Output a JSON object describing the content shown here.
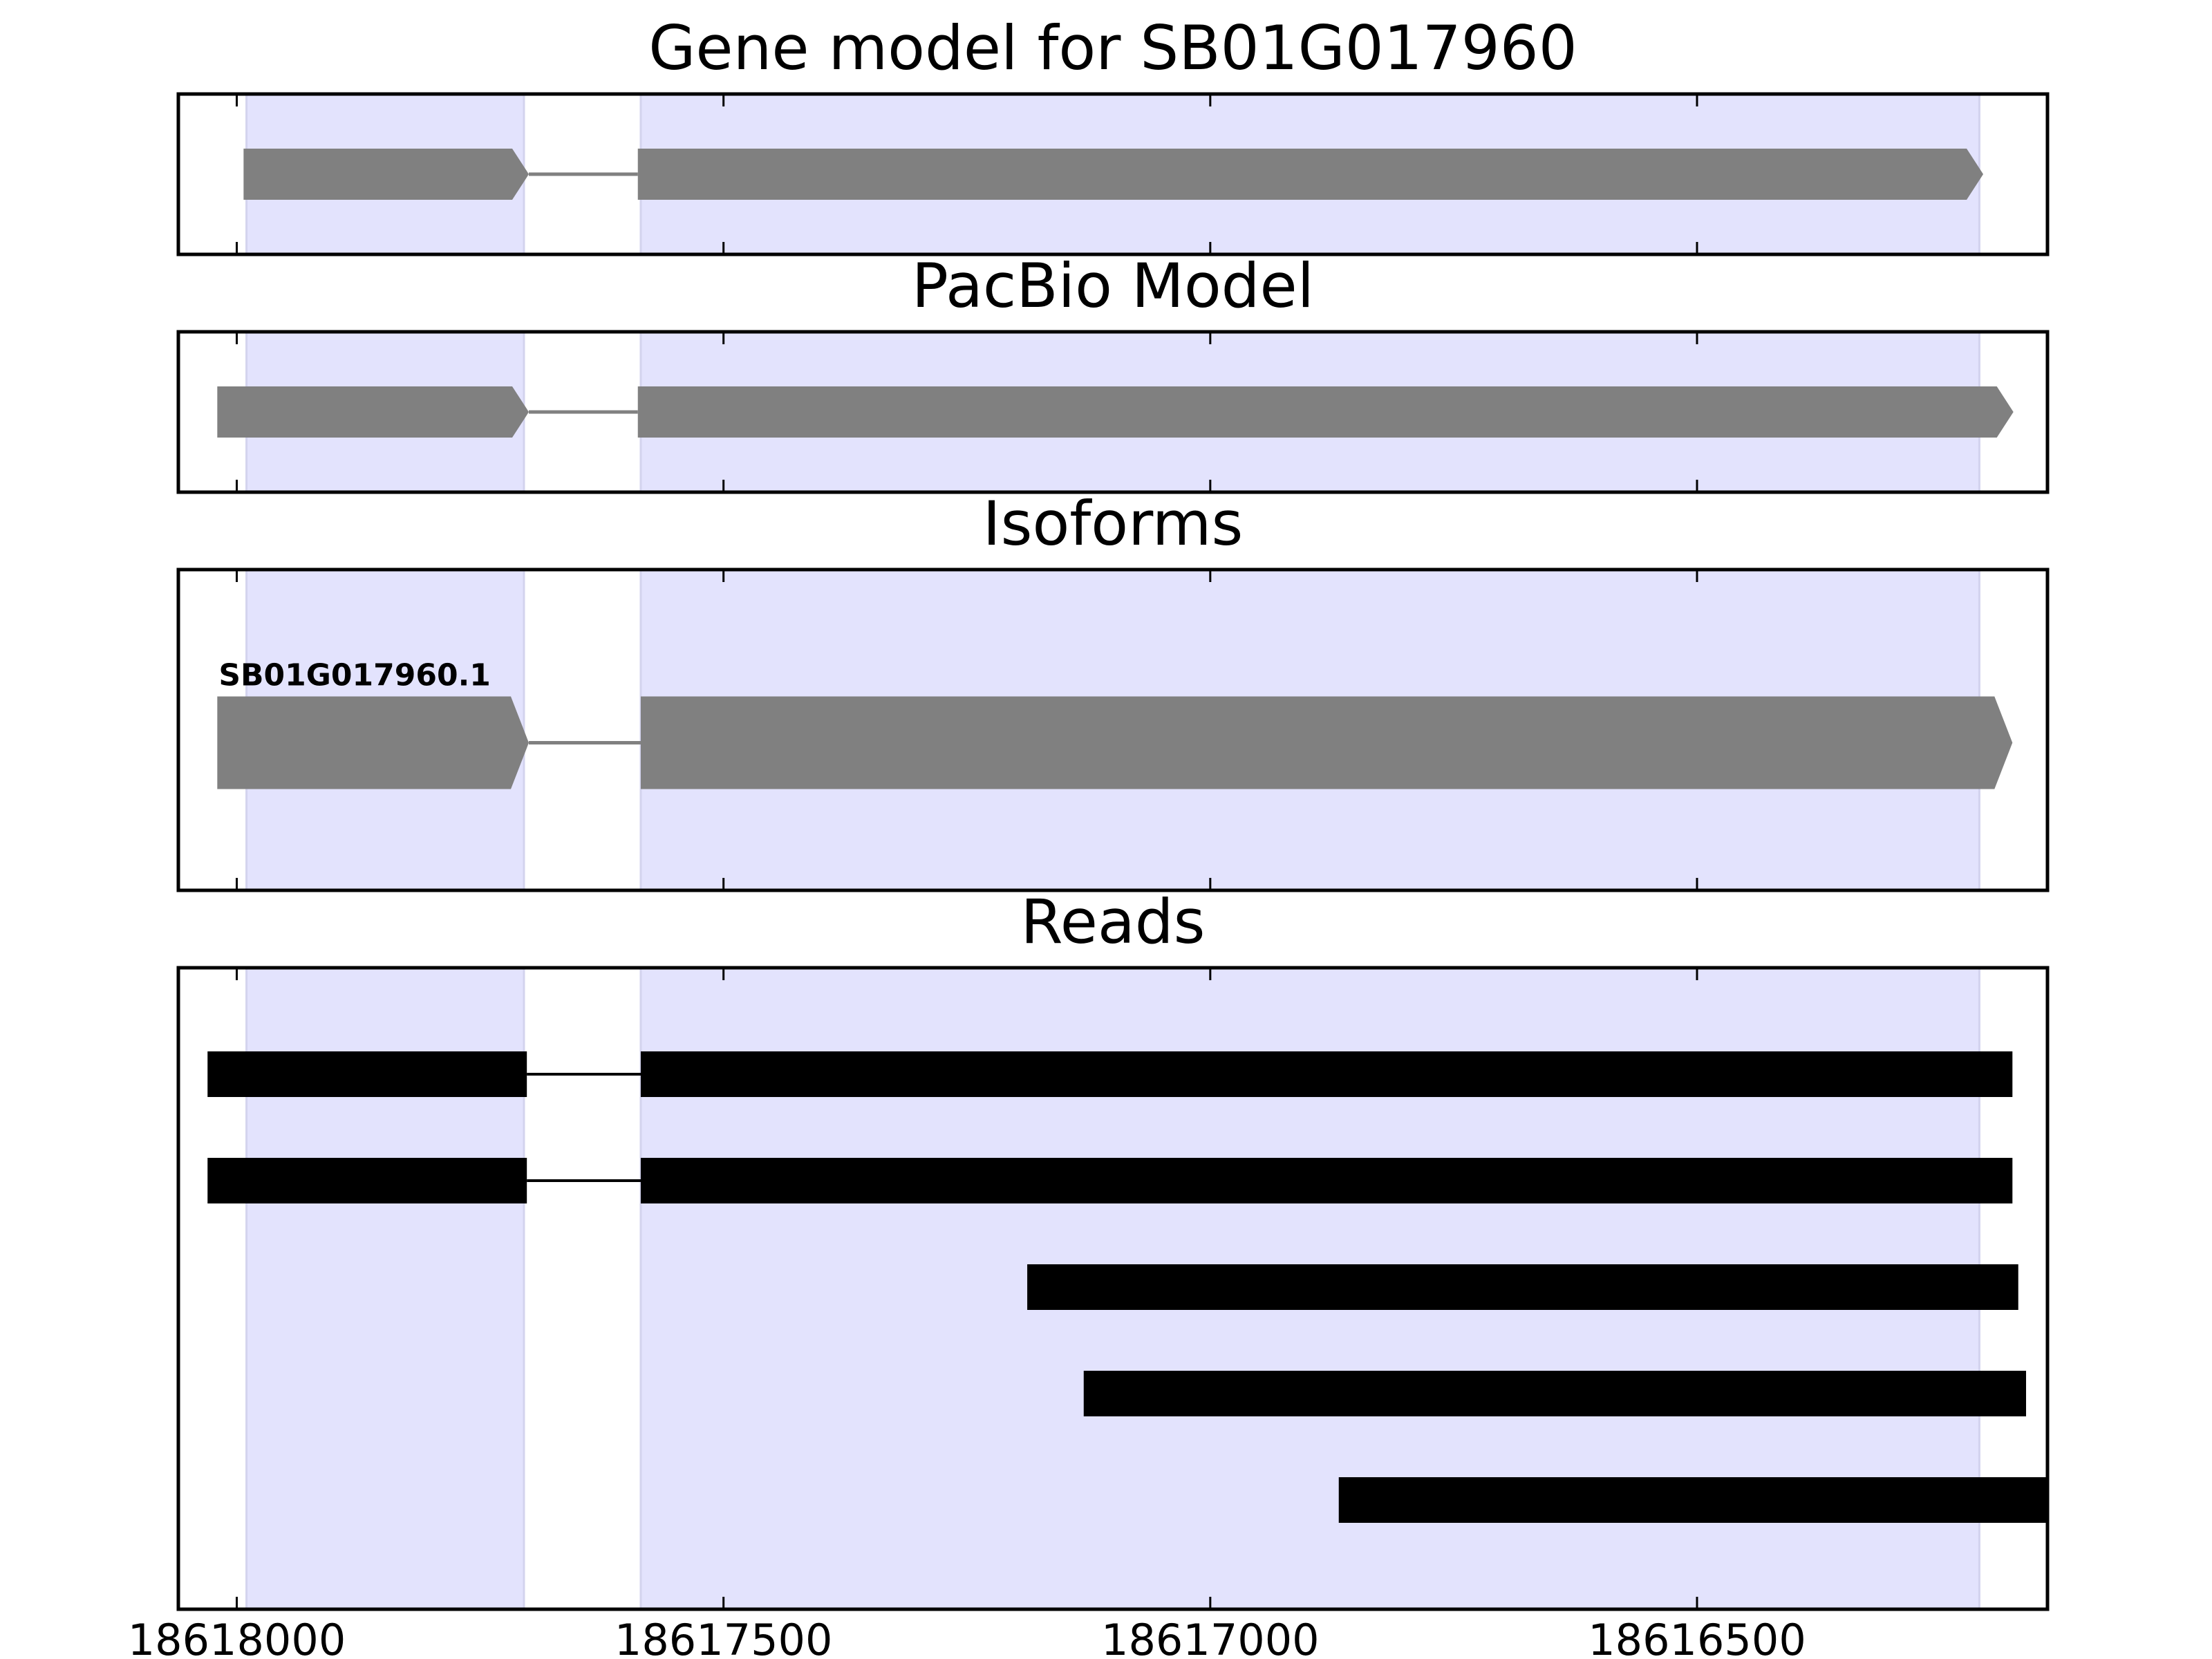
{
  "chart_data": {
    "type": "gene_track",
    "x_axis": {
      "xlim": [
        18618060,
        18616140
      ],
      "ticks": [
        18618000,
        18617500,
        18617000,
        18616500
      ],
      "tick_labels": [
        "18618000",
        "18617500",
        "18617000",
        "18616500"
      ]
    },
    "highlight_regions": [
      {
        "start": 18617990,
        "end": 18617705
      },
      {
        "start": 18617585,
        "end": 18616210
      }
    ],
    "panels": [
      {
        "title": "Gene model for SB01G017960",
        "kind": "model",
        "color": "#808080",
        "features": [
          {
            "name": "",
            "exons": [
              [
                18617993,
                18617700
              ],
              [
                18617588,
                18616206
              ]
            ]
          }
        ]
      },
      {
        "title": "PacBio Model",
        "kind": "model",
        "color": "#808080",
        "features": [
          {
            "name": "",
            "exons": [
              [
                18618020,
                18617700
              ],
              [
                18617588,
                18616175
              ]
            ]
          }
        ]
      },
      {
        "title": "Isoforms",
        "kind": "isoform",
        "color": "#808080",
        "features": [
          {
            "name": "SB01G017960.1",
            "exons": [
              [
                18618020,
                18617700
              ],
              [
                18617585,
                18616176
              ]
            ]
          }
        ]
      },
      {
        "title": "Reads",
        "kind": "reads",
        "color": "#000000",
        "features": [
          {
            "name": "",
            "exons": [
              [
                18618030,
                18617702
              ],
              [
                18617585,
                18616176
              ]
            ]
          },
          {
            "name": "",
            "exons": [
              [
                18618030,
                18617702
              ],
              [
                18617585,
                18616176
              ]
            ]
          },
          {
            "name": "",
            "exons": [
              [
                18617188,
                18616170
              ]
            ]
          },
          {
            "name": "",
            "exons": [
              [
                18617130,
                18616162
              ]
            ]
          },
          {
            "name": "",
            "exons": [
              [
                18616868,
                18616140
              ]
            ]
          }
        ]
      }
    ],
    "highlight_color": "#e3e3fd",
    "highlight_edge_color": "#d3d3ee"
  }
}
